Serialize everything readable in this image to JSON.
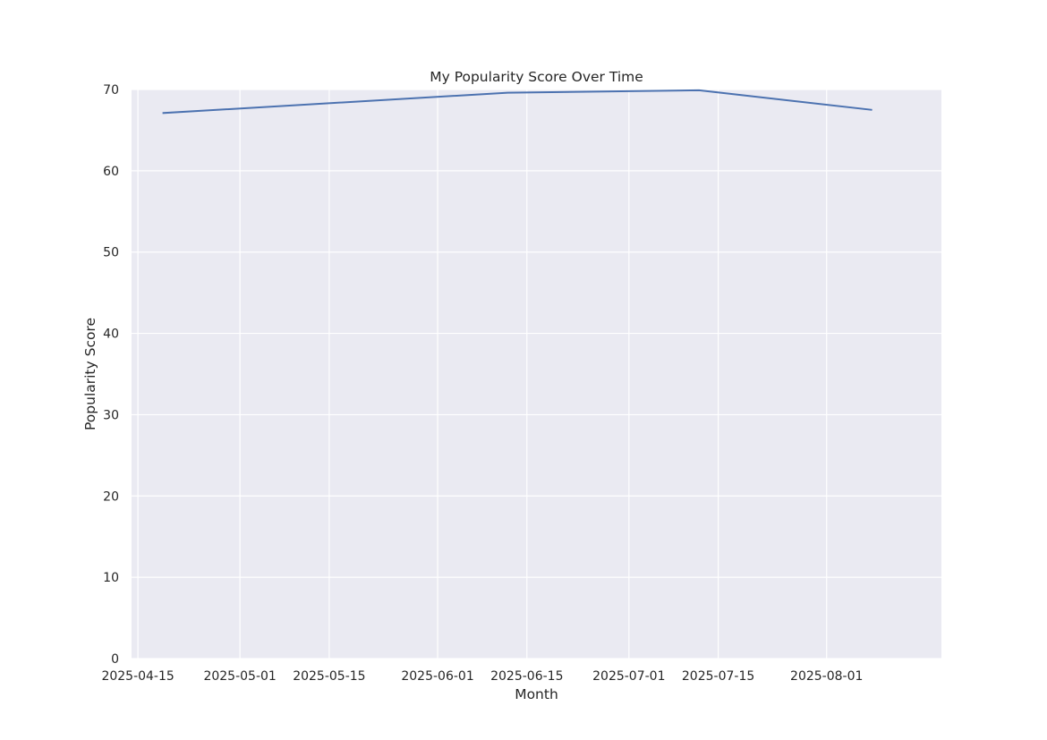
{
  "chart_data": {
    "type": "line",
    "title": "My Popularity Score Over Time",
    "xlabel": "Month",
    "ylabel": "Popularity Score",
    "x_ticks": [
      "2025-04-15",
      "2025-05-01",
      "2025-05-15",
      "2025-06-01",
      "2025-06-15",
      "2025-07-01",
      "2025-07-15",
      "2025-08-01"
    ],
    "y_ticks": [
      0,
      10,
      20,
      30,
      40,
      50,
      60,
      70
    ],
    "xlim": [
      "2025-04-14",
      "2025-08-19"
    ],
    "ylim": [
      0,
      70
    ],
    "grid": true,
    "legend": false,
    "colors": {
      "background": "#eaeaf2",
      "grid": "#ffffff",
      "line": "#4c72b0",
      "text": "#262626"
    },
    "series": [
      {
        "x": [
          "2025-04-19",
          "2025-06-12",
          "2025-07-12",
          "2025-08-08"
        ],
        "y": [
          67.1,
          69.6,
          69.9,
          67.5
        ]
      }
    ]
  }
}
